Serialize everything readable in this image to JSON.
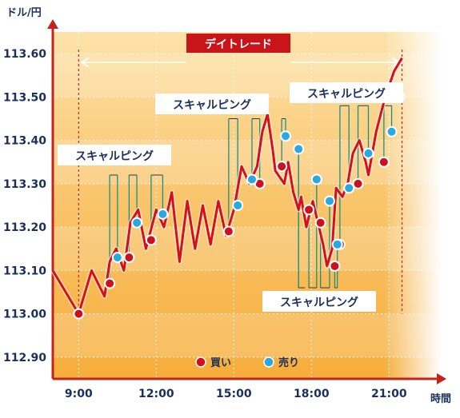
{
  "chart_data": {
    "type": "line",
    "ylabel": "ドル/円",
    "xlabel": "時間",
    "ylim": [
      112.85,
      113.65
    ],
    "y_ticks": [
      "112.90",
      "113.00",
      "113.10",
      "113.20",
      "113.30",
      "113.40",
      "113.50",
      "113.60"
    ],
    "y_tick_values": [
      112.9,
      113.0,
      113.1,
      113.2,
      113.3,
      113.4,
      113.5,
      113.6
    ],
    "x_ticks": [
      "9:00",
      "12:00",
      "15:00",
      "18:00",
      "21:00"
    ],
    "x_tick_hours": [
      9,
      12,
      15,
      18,
      21
    ],
    "xlim_hours": [
      8.0,
      23.0
    ],
    "daytrade_label": "デイトレード",
    "daytrade_range_hours": [
      9.0,
      21.5
    ],
    "scalping_labels": [
      "スキャルピング",
      "スキャルピング",
      "スキャルピング",
      "スキャルピング"
    ],
    "legend": {
      "buy": "買い",
      "sell": "売り"
    },
    "colors": {
      "line": "#d4101c",
      "buy": "#cc1020",
      "sell": "#29a9df",
      "bracket": "#1f8f85",
      "title_bg": "#c9141a",
      "axis": "#c0241c",
      "tick_text": "#1a2f5a"
    },
    "series": [
      {
        "values": [
          [
            8.0,
            113.1
          ],
          [
            9.0,
            113.0
          ],
          [
            9.5,
            113.1
          ],
          [
            10.0,
            113.04
          ],
          [
            10.2,
            113.12
          ],
          [
            10.45,
            113.15
          ],
          [
            10.75,
            113.1
          ],
          [
            11.0,
            113.21
          ],
          [
            11.3,
            113.24
          ],
          [
            11.6,
            113.15
          ],
          [
            12.0,
            113.24
          ],
          [
            12.3,
            113.2
          ],
          [
            12.6,
            113.28
          ],
          [
            12.9,
            113.12
          ],
          [
            13.2,
            113.26
          ],
          [
            13.5,
            113.15
          ],
          [
            13.8,
            113.25
          ],
          [
            14.1,
            113.16
          ],
          [
            14.4,
            113.26
          ],
          [
            14.7,
            113.18
          ],
          [
            15.0,
            113.24
          ],
          [
            15.15,
            113.29
          ],
          [
            15.3,
            113.34
          ],
          [
            15.6,
            113.3
          ],
          [
            15.9,
            113.34
          ],
          [
            16.1,
            113.42
          ],
          [
            16.3,
            113.46
          ],
          [
            16.5,
            113.38
          ],
          [
            16.6,
            113.33
          ],
          [
            16.95,
            113.3
          ],
          [
            17.1,
            113.35
          ],
          [
            17.3,
            113.28
          ],
          [
            17.5,
            113.24
          ],
          [
            17.6,
            113.27
          ],
          [
            17.8,
            113.2
          ],
          [
            18.05,
            113.26
          ],
          [
            18.25,
            113.21
          ],
          [
            18.45,
            113.16
          ],
          [
            18.6,
            113.11
          ],
          [
            18.8,
            113.15
          ],
          [
            18.95,
            113.29
          ],
          [
            19.2,
            113.27
          ],
          [
            19.4,
            113.3
          ],
          [
            19.6,
            113.37
          ],
          [
            19.85,
            113.4
          ],
          [
            20.1,
            113.35
          ],
          [
            20.2,
            113.32
          ],
          [
            20.5,
            113.42
          ],
          [
            20.85,
            113.5
          ],
          [
            21.2,
            113.56
          ],
          [
            21.5,
            113.59
          ]
        ]
      }
    ],
    "buy_points": [
      [
        9.0,
        113.0
      ],
      [
        10.2,
        113.07
      ],
      [
        10.95,
        113.13
      ],
      [
        11.8,
        113.17
      ],
      [
        14.8,
        113.19
      ],
      [
        16.0,
        113.3
      ],
      [
        16.85,
        113.34
      ],
      [
        17.9,
        113.24
      ],
      [
        18.35,
        113.21
      ],
      [
        18.9,
        113.11
      ],
      [
        19.1,
        113.16
      ],
      [
        19.8,
        113.3
      ],
      [
        20.8,
        113.35
      ]
    ],
    "sell_points": [
      [
        10.5,
        113.13
      ],
      [
        11.25,
        113.21
      ],
      [
        12.25,
        113.23
      ],
      [
        15.15,
        113.25
      ],
      [
        15.7,
        113.31
      ],
      [
        17.0,
        113.41
      ],
      [
        17.5,
        113.38
      ],
      [
        18.2,
        113.31
      ],
      [
        18.7,
        113.26
      ],
      [
        19.0,
        113.16
      ],
      [
        19.45,
        113.29
      ],
      [
        20.2,
        113.37
      ],
      [
        21.1,
        113.42
      ],
      [
        21.4,
        113.5
      ]
    ]
  }
}
